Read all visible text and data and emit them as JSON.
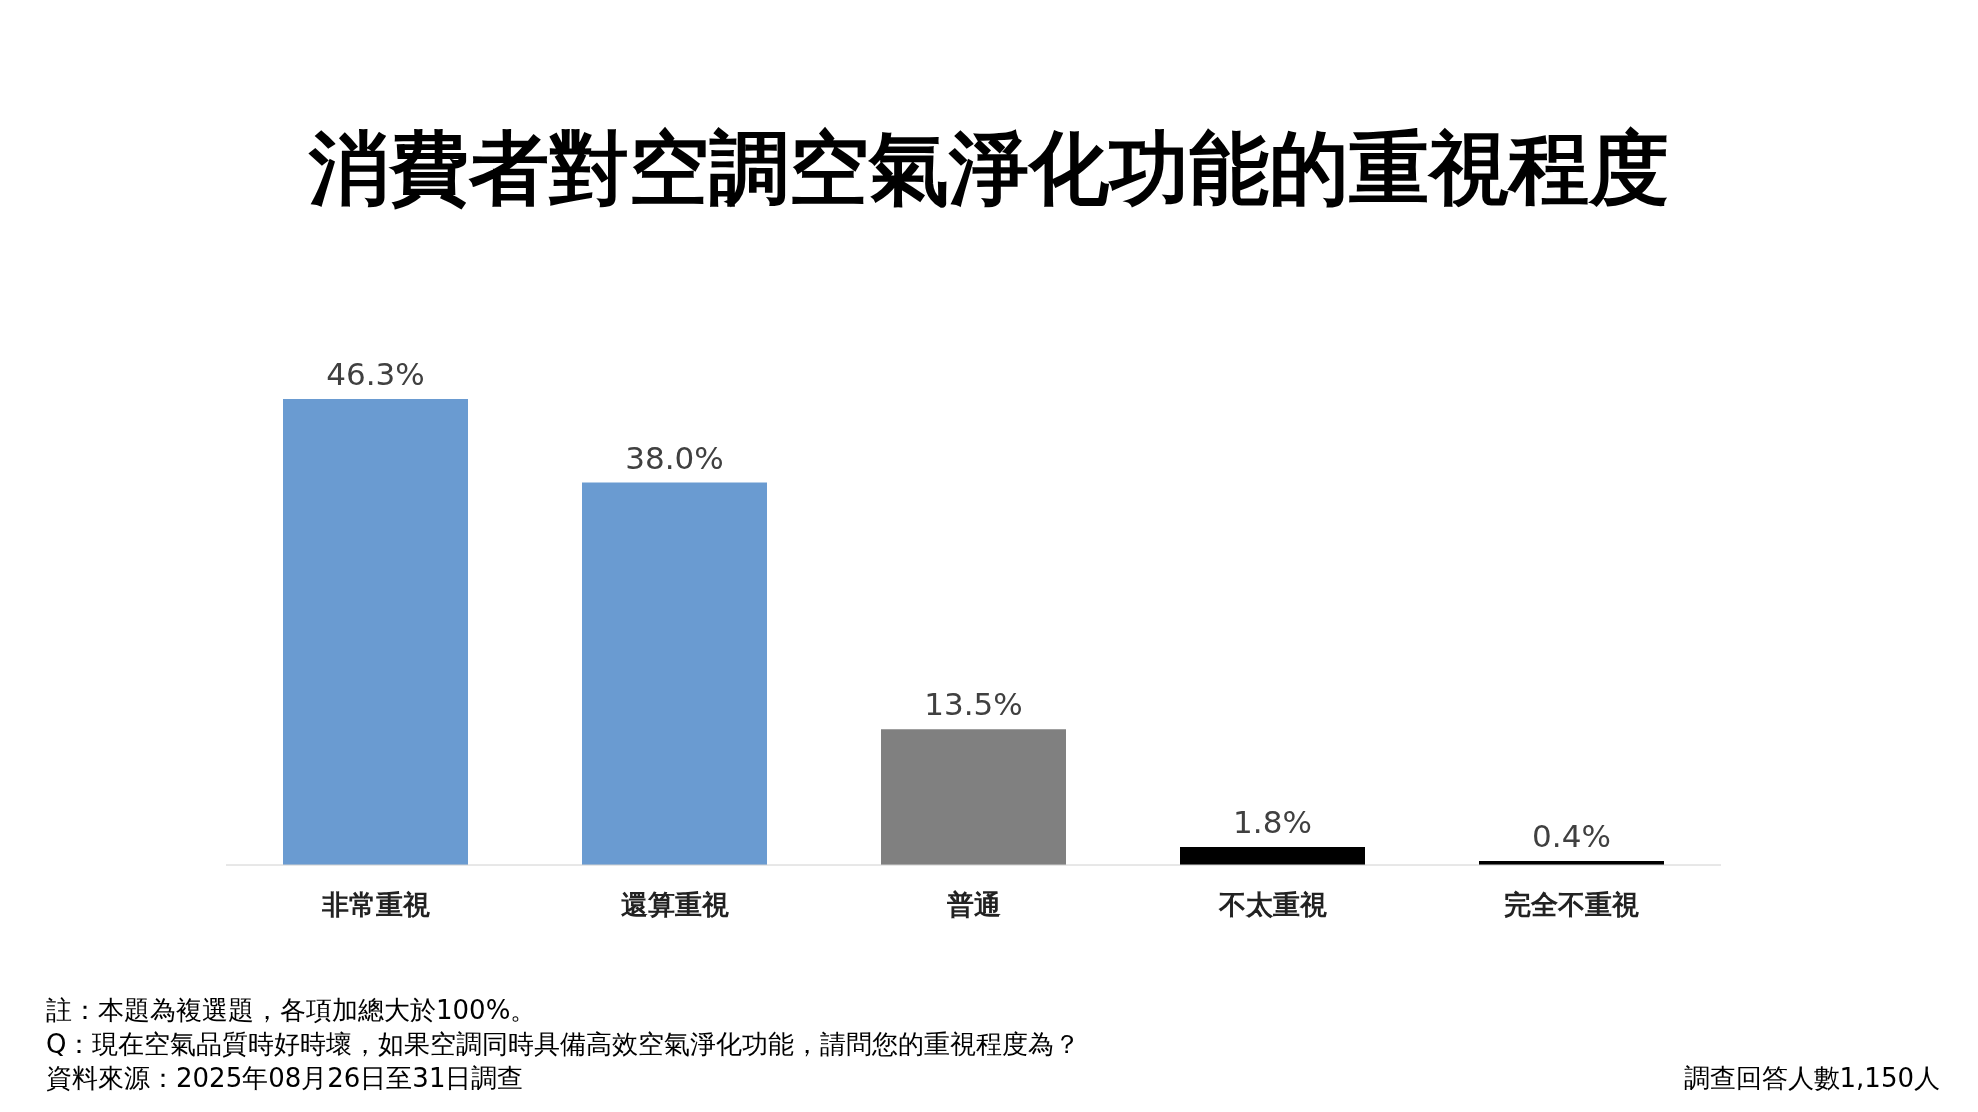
{
  "chart_data": {
    "type": "bar",
    "title": "消費者對空調空氣淨化功能的重視程度",
    "categories": [
      "非常重視",
      "還算重視",
      "普通",
      "不太重視",
      "完全不重視"
    ],
    "values": [
      46.3,
      38.0,
      13.5,
      1.8,
      0.4
    ],
    "colors": [
      "#6a9bd1",
      "#6a9bd1",
      "#808080",
      "#000000",
      "#000000"
    ],
    "value_labels": [
      "46.3%",
      "38.0%",
      "13.5%",
      "1.8%",
      "0.4%"
    ],
    "annotations": [
      "註：本題為複選題，各項加總大於100%。",
      "Q：現在空氣品質時好時壞，如果空調同時具備高效空氣淨化功能，請問您的重視程度為？",
      "資料來源：2025年08月26日至31日調查",
      "調查回答人數1,150人"
    ]
  }
}
